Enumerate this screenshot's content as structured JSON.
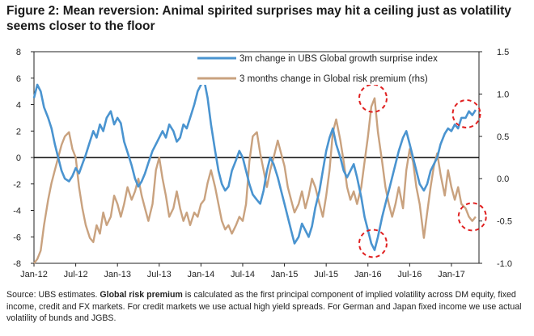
{
  "figure": {
    "title": "Figure 2: Mean reversion: Animal spirited surprises may hit a ceiling just as volatility seems closer to the floor"
  },
  "source": {
    "prefix": "Source:  UBS estimates. ",
    "bold": "Global risk premium",
    "rest": " is calculated as the first principal component of implied volatility across DM equity, fixed income, credit and FX markets. For credit markets we use actual high yield spreads. For German and Japan fixed income we use actual volatility of bunds and JGBS."
  },
  "colors": {
    "growth": "#4a94d0",
    "risk": "#c9a27f",
    "circle": "#e02020",
    "axis": "#222222",
    "grid": "#bfbfbf"
  },
  "chart_data": {
    "type": "line",
    "title": "",
    "x_range": [
      2012.0,
      2017.33
    ],
    "x_ticks": [
      {
        "v": 2012.0,
        "label": "Jan-12"
      },
      {
        "v": 2012.5,
        "label": "Jul-12"
      },
      {
        "v": 2013.0,
        "label": "Jan-13"
      },
      {
        "v": 2013.5,
        "label": "Jul-13"
      },
      {
        "v": 2014.0,
        "label": "Jan-14"
      },
      {
        "v": 2014.5,
        "label": "Jul-14"
      },
      {
        "v": 2015.0,
        "label": "Jan-15"
      },
      {
        "v": 2015.5,
        "label": "Jul-15"
      },
      {
        "v": 2016.0,
        "label": "Jan-16"
      },
      {
        "v": 2016.5,
        "label": "Jul-16"
      },
      {
        "v": 2017.0,
        "label": "Jan-17"
      }
    ],
    "y_left": {
      "range": [
        -8,
        8
      ],
      "ticks": [
        "8",
        "6",
        "4",
        "2",
        "0",
        "-2",
        "-4",
        "-6",
        "-8"
      ],
      "tick_values": [
        8,
        6,
        4,
        2,
        0,
        -2,
        -4,
        -6,
        -8
      ]
    },
    "y_right": {
      "range": [
        -1.0,
        1.5
      ],
      "ticks": [
        "1.5",
        "1.0",
        "0.5",
        "0.0",
        "-0.5",
        "-1.0"
      ],
      "tick_values": [
        1.5,
        1.0,
        0.5,
        0.0,
        -0.5,
        -1.0
      ]
    },
    "legend_position": "top-center",
    "series": [
      {
        "name": "3m change in UBS Global growth surprise index",
        "axis": "left",
        "color": "#4a94d0",
        "points": [
          [
            2012.0,
            4.5
          ],
          [
            2012.04,
            5.5
          ],
          [
            2012.08,
            5.0
          ],
          [
            2012.12,
            3.8
          ],
          [
            2012.17,
            3.0
          ],
          [
            2012.21,
            2.2
          ],
          [
            2012.25,
            1.0
          ],
          [
            2012.29,
            0.0
          ],
          [
            2012.33,
            -1.0
          ],
          [
            2012.37,
            -1.6
          ],
          [
            2012.42,
            -1.8
          ],
          [
            2012.46,
            -1.4
          ],
          [
            2012.5,
            -0.8
          ],
          [
            2012.54,
            -1.2
          ],
          [
            2012.58,
            -0.5
          ],
          [
            2012.62,
            0.2
          ],
          [
            2012.67,
            1.2
          ],
          [
            2012.71,
            2.0
          ],
          [
            2012.75,
            1.5
          ],
          [
            2012.79,
            2.5
          ],
          [
            2012.83,
            2.0
          ],
          [
            2012.87,
            3.0
          ],
          [
            2012.92,
            3.5
          ],
          [
            2012.96,
            2.5
          ],
          [
            2013.0,
            3.0
          ],
          [
            2013.04,
            2.6
          ],
          [
            2013.08,
            1.2
          ],
          [
            2013.12,
            0.4
          ],
          [
            2013.17,
            -0.6
          ],
          [
            2013.21,
            -1.6
          ],
          [
            2013.25,
            -2.2
          ],
          [
            2013.29,
            -1.8
          ],
          [
            2013.33,
            -1.2
          ],
          [
            2013.37,
            -0.4
          ],
          [
            2013.42,
            0.5
          ],
          [
            2013.46,
            1.0
          ],
          [
            2013.5,
            1.5
          ],
          [
            2013.54,
            2.0
          ],
          [
            2013.58,
            1.5
          ],
          [
            2013.62,
            2.5
          ],
          [
            2013.67,
            2.0
          ],
          [
            2013.71,
            1.2
          ],
          [
            2013.75,
            1.5
          ],
          [
            2013.79,
            2.5
          ],
          [
            2013.83,
            2.2
          ],
          [
            2013.87,
            3.0
          ],
          [
            2013.92,
            4.0
          ],
          [
            2013.96,
            5.0
          ],
          [
            2014.0,
            5.5
          ],
          [
            2014.04,
            5.8
          ],
          [
            2014.08,
            4.5
          ],
          [
            2014.12,
            2.5
          ],
          [
            2014.17,
            0.5
          ],
          [
            2014.21,
            -1.0
          ],
          [
            2014.25,
            -2.0
          ],
          [
            2014.29,
            -2.5
          ],
          [
            2014.33,
            -2.2
          ],
          [
            2014.37,
            -1.0
          ],
          [
            2014.42,
            -0.2
          ],
          [
            2014.46,
            0.5
          ],
          [
            2014.5,
            0.0
          ],
          [
            2014.54,
            -1.0
          ],
          [
            2014.58,
            -2.0
          ],
          [
            2014.62,
            -2.8
          ],
          [
            2014.67,
            -3.2
          ],
          [
            2014.71,
            -3.5
          ],
          [
            2014.75,
            -2.5
          ],
          [
            2014.79,
            -1.0
          ],
          [
            2014.83,
            0.0
          ],
          [
            2014.87,
            -0.5
          ],
          [
            2014.92,
            -1.5
          ],
          [
            2014.96,
            -2.5
          ],
          [
            2015.0,
            -3.5
          ],
          [
            2015.04,
            -4.5
          ],
          [
            2015.08,
            -5.5
          ],
          [
            2015.12,
            -6.5
          ],
          [
            2015.17,
            -6.0
          ],
          [
            2015.21,
            -5.0
          ],
          [
            2015.25,
            -5.5
          ],
          [
            2015.29,
            -6.0
          ],
          [
            2015.33,
            -5.2
          ],
          [
            2015.37,
            -3.8
          ],
          [
            2015.42,
            -2.5
          ],
          [
            2015.46,
            -1.0
          ],
          [
            2015.5,
            0.5
          ],
          [
            2015.54,
            1.5
          ],
          [
            2015.58,
            2.2
          ],
          [
            2015.62,
            1.0
          ],
          [
            2015.67,
            0.0
          ],
          [
            2015.71,
            -1.0
          ],
          [
            2015.75,
            -1.5
          ],
          [
            2015.79,
            -1.0
          ],
          [
            2015.83,
            -0.5
          ],
          [
            2015.87,
            -1.5
          ],
          [
            2015.92,
            -3.0
          ],
          [
            2015.96,
            -4.5
          ],
          [
            2016.0,
            -5.5
          ],
          [
            2016.04,
            -6.5
          ],
          [
            2016.08,
            -7.0
          ],
          [
            2016.12,
            -6.0
          ],
          [
            2016.17,
            -4.5
          ],
          [
            2016.21,
            -3.5
          ],
          [
            2016.25,
            -2.5
          ],
          [
            2016.29,
            -1.5
          ],
          [
            2016.33,
            -0.5
          ],
          [
            2016.37,
            0.5
          ],
          [
            2016.42,
            1.5
          ],
          [
            2016.46,
            2.0
          ],
          [
            2016.5,
            1.0
          ],
          [
            2016.54,
            0.0
          ],
          [
            2016.58,
            -1.0
          ],
          [
            2016.62,
            -2.0
          ],
          [
            2016.67,
            -2.5
          ],
          [
            2016.71,
            -2.0
          ],
          [
            2016.75,
            -1.0
          ],
          [
            2016.79,
            -0.5
          ],
          [
            2016.83,
            0.0
          ],
          [
            2016.87,
            1.0
          ],
          [
            2016.92,
            1.8
          ],
          [
            2016.96,
            2.2
          ],
          [
            2017.0,
            2.0
          ],
          [
            2017.04,
            2.5
          ],
          [
            2017.08,
            2.2
          ],
          [
            2017.12,
            3.0
          ],
          [
            2017.17,
            3.0
          ],
          [
            2017.21,
            3.5
          ],
          [
            2017.25,
            3.2
          ],
          [
            2017.29,
            3.6
          ]
        ]
      },
      {
        "name": "3 months change in Global risk premium (rhs)",
        "axis": "right",
        "color": "#c9a27f",
        "points": [
          [
            2012.0,
            -1.0
          ],
          [
            2012.04,
            -0.95
          ],
          [
            2012.08,
            -0.85
          ],
          [
            2012.12,
            -0.55
          ],
          [
            2012.17,
            -0.25
          ],
          [
            2012.21,
            -0.05
          ],
          [
            2012.25,
            0.1
          ],
          [
            2012.29,
            0.25
          ],
          [
            2012.33,
            0.4
          ],
          [
            2012.37,
            0.5
          ],
          [
            2012.42,
            0.55
          ],
          [
            2012.46,
            0.35
          ],
          [
            2012.5,
            0.25
          ],
          [
            2012.54,
            -0.1
          ],
          [
            2012.58,
            -0.35
          ],
          [
            2012.62,
            -0.55
          ],
          [
            2012.67,
            -0.7
          ],
          [
            2012.71,
            -0.75
          ],
          [
            2012.75,
            -0.55
          ],
          [
            2012.79,
            -0.65
          ],
          [
            2012.83,
            -0.4
          ],
          [
            2012.87,
            -0.55
          ],
          [
            2012.92,
            -0.45
          ],
          [
            2012.96,
            -0.2
          ],
          [
            2013.0,
            -0.3
          ],
          [
            2013.04,
            -0.45
          ],
          [
            2013.08,
            -0.3
          ],
          [
            2013.12,
            -0.1
          ],
          [
            2013.17,
            -0.25
          ],
          [
            2013.21,
            -0.15
          ],
          [
            2013.25,
            0.0
          ],
          [
            2013.29,
            -0.2
          ],
          [
            2013.33,
            -0.35
          ],
          [
            2013.37,
            -0.5
          ],
          [
            2013.42,
            -0.3
          ],
          [
            2013.46,
            0.1
          ],
          [
            2013.5,
            0.25
          ],
          [
            2013.54,
            0.0
          ],
          [
            2013.58,
            -0.2
          ],
          [
            2013.62,
            -0.45
          ],
          [
            2013.67,
            -0.35
          ],
          [
            2013.71,
            -0.15
          ],
          [
            2013.75,
            -0.35
          ],
          [
            2013.79,
            -0.5
          ],
          [
            2013.83,
            -0.4
          ],
          [
            2013.87,
            -0.55
          ],
          [
            2013.92,
            -0.4
          ],
          [
            2013.96,
            -0.45
          ],
          [
            2014.0,
            -0.3
          ],
          [
            2014.04,
            -0.25
          ],
          [
            2014.08,
            -0.05
          ],
          [
            2014.12,
            0.1
          ],
          [
            2014.17,
            -0.1
          ],
          [
            2014.21,
            -0.3
          ],
          [
            2014.25,
            -0.5
          ],
          [
            2014.29,
            -0.6
          ],
          [
            2014.33,
            -0.55
          ],
          [
            2014.37,
            -0.65
          ],
          [
            2014.42,
            -0.55
          ],
          [
            2014.46,
            -0.45
          ],
          [
            2014.5,
            -0.5
          ],
          [
            2014.54,
            -0.3
          ],
          [
            2014.58,
            0.2
          ],
          [
            2014.62,
            0.5
          ],
          [
            2014.67,
            0.55
          ],
          [
            2014.71,
            0.3
          ],
          [
            2014.75,
            0.1
          ],
          [
            2014.79,
            -0.1
          ],
          [
            2014.83,
            0.1
          ],
          [
            2014.87,
            0.25
          ],
          [
            2014.92,
            0.45
          ],
          [
            2014.96,
            0.3
          ],
          [
            2015.0,
            0.15
          ],
          [
            2015.04,
            -0.1
          ],
          [
            2015.08,
            -0.25
          ],
          [
            2015.12,
            -0.4
          ],
          [
            2015.17,
            -0.3
          ],
          [
            2015.21,
            -0.15
          ],
          [
            2015.25,
            -0.35
          ],
          [
            2015.29,
            -0.2
          ],
          [
            2015.33,
            0.0
          ],
          [
            2015.37,
            -0.1
          ],
          [
            2015.42,
            -0.3
          ],
          [
            2015.46,
            -0.45
          ],
          [
            2015.5,
            -0.2
          ],
          [
            2015.54,
            0.1
          ],
          [
            2015.58,
            0.55
          ],
          [
            2015.62,
            0.7
          ],
          [
            2015.67,
            0.45
          ],
          [
            2015.71,
            0.2
          ],
          [
            2015.75,
            -0.1
          ],
          [
            2015.79,
            -0.25
          ],
          [
            2015.83,
            -0.15
          ],
          [
            2015.87,
            -0.3
          ],
          [
            2015.92,
            -0.1
          ],
          [
            2015.96,
            0.2
          ],
          [
            2016.0,
            0.5
          ],
          [
            2016.04,
            0.85
          ],
          [
            2016.08,
            0.95
          ],
          [
            2016.12,
            0.55
          ],
          [
            2016.17,
            0.2
          ],
          [
            2016.21,
            -0.1
          ],
          [
            2016.25,
            -0.3
          ],
          [
            2016.29,
            -0.45
          ],
          [
            2016.33,
            -0.3
          ],
          [
            2016.37,
            -0.1
          ],
          [
            2016.42,
            -0.35
          ],
          [
            2016.46,
            0.1
          ],
          [
            2016.5,
            0.35
          ],
          [
            2016.54,
            0.2
          ],
          [
            2016.58,
            -0.1
          ],
          [
            2016.62,
            -0.3
          ],
          [
            2016.67,
            -0.7
          ],
          [
            2016.71,
            -0.4
          ],
          [
            2016.75,
            -0.1
          ],
          [
            2016.79,
            0.15
          ],
          [
            2016.83,
            0.3
          ],
          [
            2016.87,
            0.05
          ],
          [
            2016.92,
            -0.2
          ],
          [
            2016.96,
            0.1
          ],
          [
            2017.0,
            -0.1
          ],
          [
            2017.04,
            -0.25
          ],
          [
            2017.08,
            -0.1
          ],
          [
            2017.12,
            -0.3
          ],
          [
            2017.17,
            -0.35
          ],
          [
            2017.21,
            -0.45
          ],
          [
            2017.25,
            -0.5
          ],
          [
            2017.29,
            -0.45
          ]
        ]
      }
    ],
    "annotations": [
      {
        "type": "dashed-circle",
        "x": 2016.06,
        "axis": "right",
        "y": 0.95,
        "note": "risk premium peak"
      },
      {
        "type": "dashed-circle",
        "x": 2016.06,
        "axis": "left",
        "y": -6.5,
        "note": "growth surprise trough"
      },
      {
        "type": "dashed-circle",
        "x": 2017.18,
        "axis": "left",
        "y": 3.3,
        "note": "growth surprise recent high"
      },
      {
        "type": "dashed-circle",
        "x": 2017.25,
        "axis": "right",
        "y": -0.45,
        "note": "risk premium recent low"
      }
    ]
  }
}
